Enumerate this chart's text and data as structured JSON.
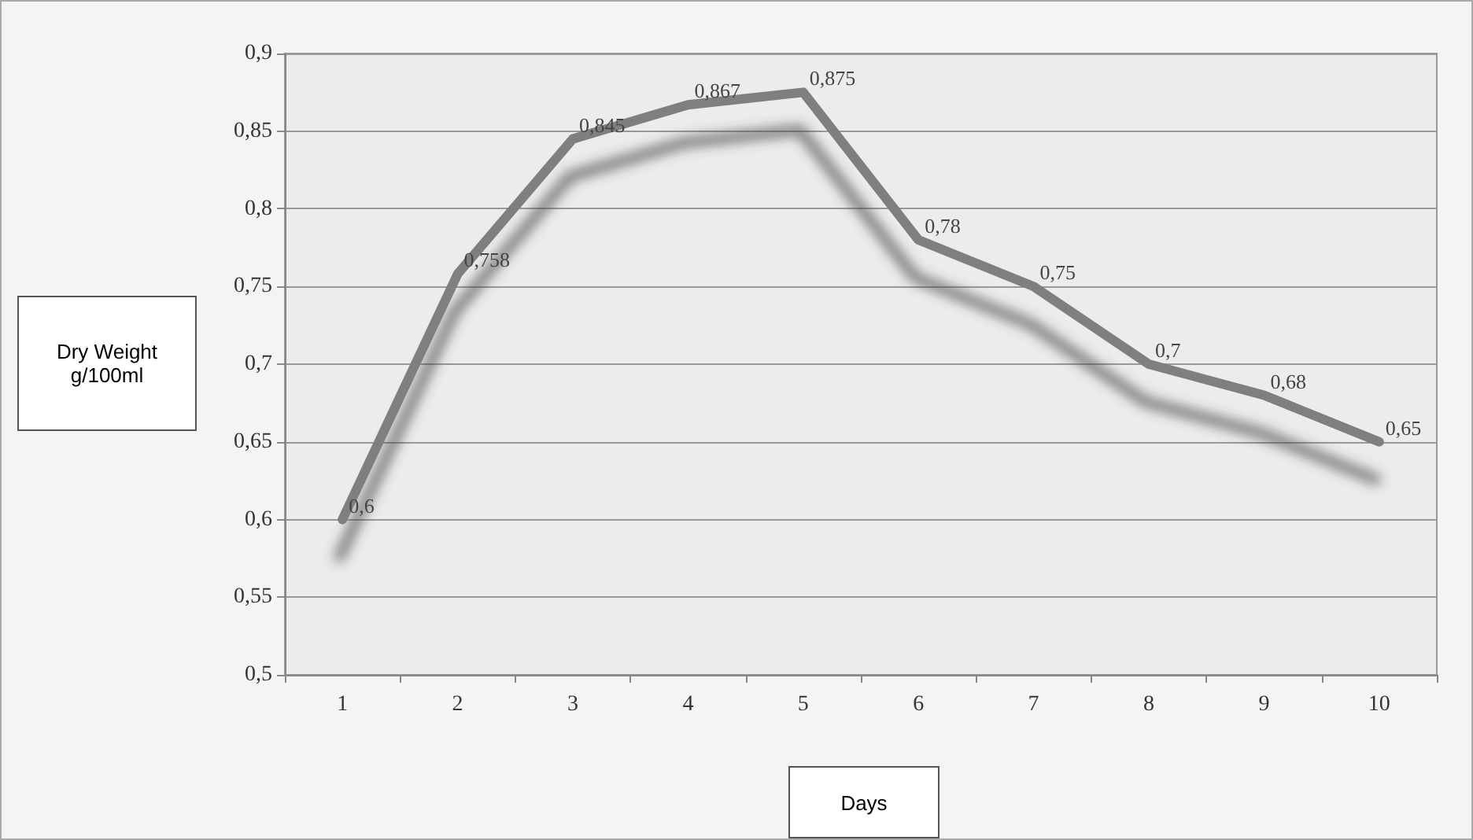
{
  "chart_data": {
    "type": "line",
    "xlabel": "Days",
    "ylabel": "Dry Weight g/100ml",
    "categories": [
      "1",
      "2",
      "3",
      "4",
      "5",
      "6",
      "7",
      "8",
      "9",
      "10"
    ],
    "series": [
      {
        "color": "#7f7f7f",
        "values": [
          0.6,
          0.758,
          0.845,
          0.867,
          0.875,
          0.78,
          0.75,
          0.7,
          0.68,
          0.65
        ],
        "value_labels": [
          "0,6",
          "0,758",
          "0,845",
          "0,867",
          "0,875",
          "0,78",
          "0,75",
          "0,7",
          "0,68",
          "0,65"
        ]
      }
    ],
    "ylim": [
      0.5,
      0.9
    ],
    "yticks": [
      {
        "value": 0.5,
        "label": "0,5"
      },
      {
        "value": 0.55,
        "label": "0,55"
      },
      {
        "value": 0.6,
        "label": "0,6"
      },
      {
        "value": 0.65,
        "label": "0,65"
      },
      {
        "value": 0.7,
        "label": "0,7"
      },
      {
        "value": 0.75,
        "label": "0,75"
      },
      {
        "value": 0.8,
        "label": "0,8"
      },
      {
        "value": 0.85,
        "label": "0,85"
      },
      {
        "value": 0.9,
        "label": "0,9"
      }
    ],
    "grid": "y",
    "marker": "none",
    "line_style": "solid"
  }
}
